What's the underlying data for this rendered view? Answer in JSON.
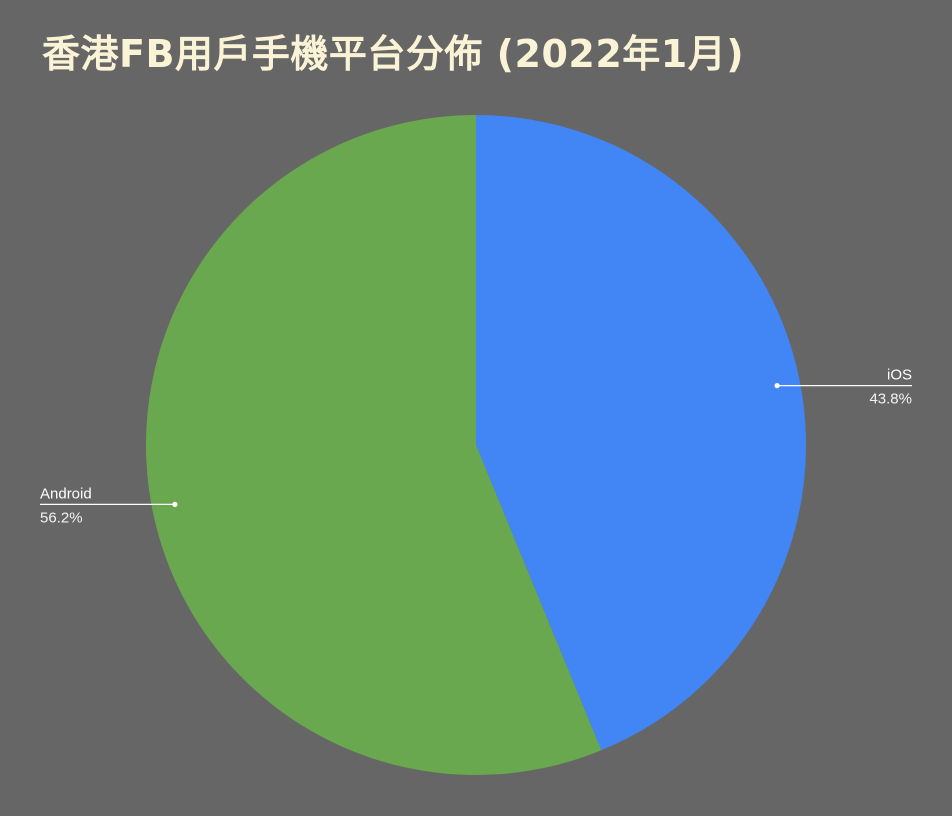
{
  "chart_data": {
    "type": "pie",
    "title": "香港FB用戶手機平台分佈 (2022年1月)",
    "slices": [
      {
        "label": "iOS",
        "value": 43.8,
        "value_label": "43.8%",
        "color": "#4285F4",
        "label_side": "right"
      },
      {
        "label": "Android",
        "value": 56.2,
        "value_label": "56.2%",
        "color": "#6AA84F",
        "label_side": "left"
      }
    ],
    "start_angle": "12 o'clock",
    "direction": "clockwise",
    "legend": "none",
    "colors": {
      "background": "#666666",
      "title": "#FBF3D5",
      "leader_line": "#FFFFFF"
    }
  }
}
